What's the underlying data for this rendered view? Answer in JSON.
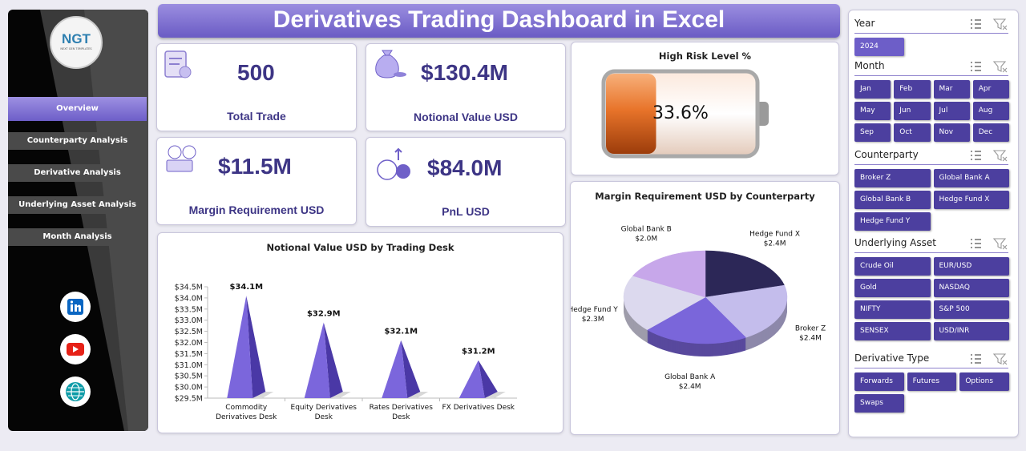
{
  "header": {
    "title": "Derivatives Trading Dashboard in Excel"
  },
  "logo": {
    "text": "NGT",
    "subtext": "NEXT GEN TEMPLATES"
  },
  "nav": [
    "Overview",
    "Counterparty Analysis",
    "Derivative Analysis",
    "Underlying Asset Analysis",
    "Month Analysis"
  ],
  "kpis": [
    {
      "value": "500",
      "label": "Total Trade"
    },
    {
      "value": "$130.4M",
      "label": "Notional Value USD"
    },
    {
      "value": "$11.5M",
      "label": "Margin Requirement USD"
    },
    {
      "value": "$84.0M",
      "label": "PnL USD"
    }
  ],
  "chart_data": [
    {
      "type": "battery",
      "title": "High Risk Level %",
      "value": 33.6,
      "value_label": "33.6%",
      "color": "#e8742a"
    },
    {
      "type": "bar",
      "title": "Notional Value USD by Trading Desk",
      "categories": [
        "Commodity Derivatives Desk",
        "Equity Derivatives Desk",
        "Rates Derivatives Desk",
        "FX Derivatives Desk"
      ],
      "values": [
        34.1,
        32.9,
        32.1,
        31.2
      ],
      "value_labels": [
        "$34.1M",
        "$32.9M",
        "$32.1M",
        "$31.2M"
      ],
      "color": "#7b66dc",
      "ylim": [
        29.5,
        34.5
      ],
      "yticks": [
        {
          "value": 29.5,
          "label": "$29.5M"
        },
        {
          "value": 30.0,
          "label": "$30.0M"
        },
        {
          "value": 30.5,
          "label": "$30.5M"
        },
        {
          "value": 31.0,
          "label": "$31.0M"
        },
        {
          "value": 31.5,
          "label": "$31.5M"
        },
        {
          "value": 32.0,
          "label": "$32.0M"
        },
        {
          "value": 32.5,
          "label": "$32.5M"
        },
        {
          "value": 33.0,
          "label": "$33.0M"
        },
        {
          "value": 33.5,
          "label": "$33.5M"
        },
        {
          "value": 34.0,
          "label": "$34.0M"
        },
        {
          "value": 34.5,
          "label": "$34.5M"
        }
      ]
    },
    {
      "type": "pie",
      "title": "Margin Requirement USD by Counterparty",
      "categories": [
        "Hedge Fund X",
        "Broker Z",
        "Global Bank A",
        "Hedge Fund Y",
        "Global Bank B"
      ],
      "values": [
        2.4,
        2.4,
        2.4,
        2.3,
        2.0
      ],
      "value_labels": [
        "$2.4M",
        "$2.4M",
        "$2.4M",
        "$2.3M",
        "$2.0M"
      ],
      "colors": [
        "#2c2757",
        "#c4bdec",
        "#7a66da",
        "#dcd9ee",
        "#c7a7ea"
      ]
    }
  ],
  "slicers": [
    {
      "title": "Year",
      "items": [
        "2024"
      ]
    },
    {
      "title": "Month",
      "items": [
        "Jan",
        "Feb",
        "Mar",
        "Apr",
        "May",
        "Jun",
        "Jul",
        "Aug",
        "Sep",
        "Oct",
        "Nov",
        "Dec"
      ]
    },
    {
      "title": "Counterparty",
      "items": [
        "Broker Z",
        "Global Bank A",
        "Global Bank B",
        "Hedge Fund X",
        "Hedge Fund Y"
      ]
    },
    {
      "title": "Underlying Asset",
      "items": [
        "Crude Oil",
        "EUR/USD",
        "Gold",
        "NASDAQ",
        "NIFTY",
        "S&P 500",
        "SENSEX",
        "USD/INR"
      ]
    },
    {
      "title": "Derivative Type",
      "items": [
        "Forwards",
        "Futures",
        "Options",
        "Swaps"
      ]
    }
  ]
}
